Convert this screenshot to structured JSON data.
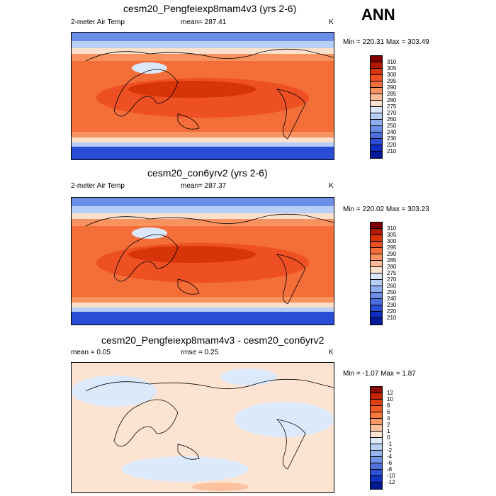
{
  "season": "ANN",
  "panels": [
    {
      "id": "p1",
      "title": "cesm20_Pengfeiexp8mam4v3 (yrs 2-6)",
      "left_label": "2-meter Air Temp",
      "center_label": "mean= 287.41",
      "right_label": "K",
      "minmax": "Min = 220.31 Max = 303.49",
      "colorbar": {
        "labels": [
          "310",
          "305",
          "300",
          "295",
          "290",
          "285",
          "280",
          "275",
          "270",
          "260",
          "250",
          "240",
          "230",
          "220",
          "210"
        ],
        "colors": [
          "#7f0000",
          "#b21a00",
          "#d8340a",
          "#ed5022",
          "#f46e3a",
          "#f8925f",
          "#fbb996",
          "#fde0cb",
          "#dbe8fb",
          "#b7cff6",
          "#8faff0",
          "#6b8fe8",
          "#4a6ee0",
          "#2a4dd6",
          "#0f2dbf",
          "#001a99"
        ]
      }
    },
    {
      "id": "p2",
      "title": "cesm20_con6yrv2 (yrs 2-6)",
      "left_label": "2-meter Air Temp",
      "center_label": "mean= 287.37",
      "right_label": "K",
      "minmax": "Min = 220.02 Max = 303.23",
      "colorbar": {
        "labels": [
          "310",
          "305",
          "300",
          "295",
          "290",
          "285",
          "280",
          "275",
          "270",
          "260",
          "250",
          "240",
          "230",
          "220",
          "210"
        ],
        "colors": [
          "#7f0000",
          "#b21a00",
          "#d8340a",
          "#ed5022",
          "#f46e3a",
          "#f8925f",
          "#fbb996",
          "#fde0cb",
          "#dbe8fb",
          "#b7cff6",
          "#8faff0",
          "#6b8fe8",
          "#4a6ee0",
          "#2a4dd6",
          "#0f2dbf",
          "#001a99"
        ]
      }
    },
    {
      "id": "p3",
      "title": "cesm20_Pengfeiexp8mam4v3 - cesm20_con6yrv2",
      "left_label": "mean =   0.05",
      "center_label": "rmse =   0.25",
      "right_label": "K",
      "minmax": "Min =  -1.07 Max =   1.87",
      "colorbar": {
        "labels": [
          "12",
          "10",
          "8",
          "6",
          "4",
          "2",
          "1",
          "0",
          "-1",
          "-2",
          "-4",
          "-6",
          "-8",
          "-10",
          "-12"
        ],
        "colors": [
          "#8a0a00",
          "#c42400",
          "#e0400e",
          "#f05a24",
          "#f6773e",
          "#f99a66",
          "#fcc19e",
          "#fde4d2",
          "#dce9fb",
          "#b9d0f5",
          "#95b3ef",
          "#7294e7",
          "#4f74df",
          "#2d53d5",
          "#1232c0",
          "#001a8f"
        ]
      }
    }
  ]
}
